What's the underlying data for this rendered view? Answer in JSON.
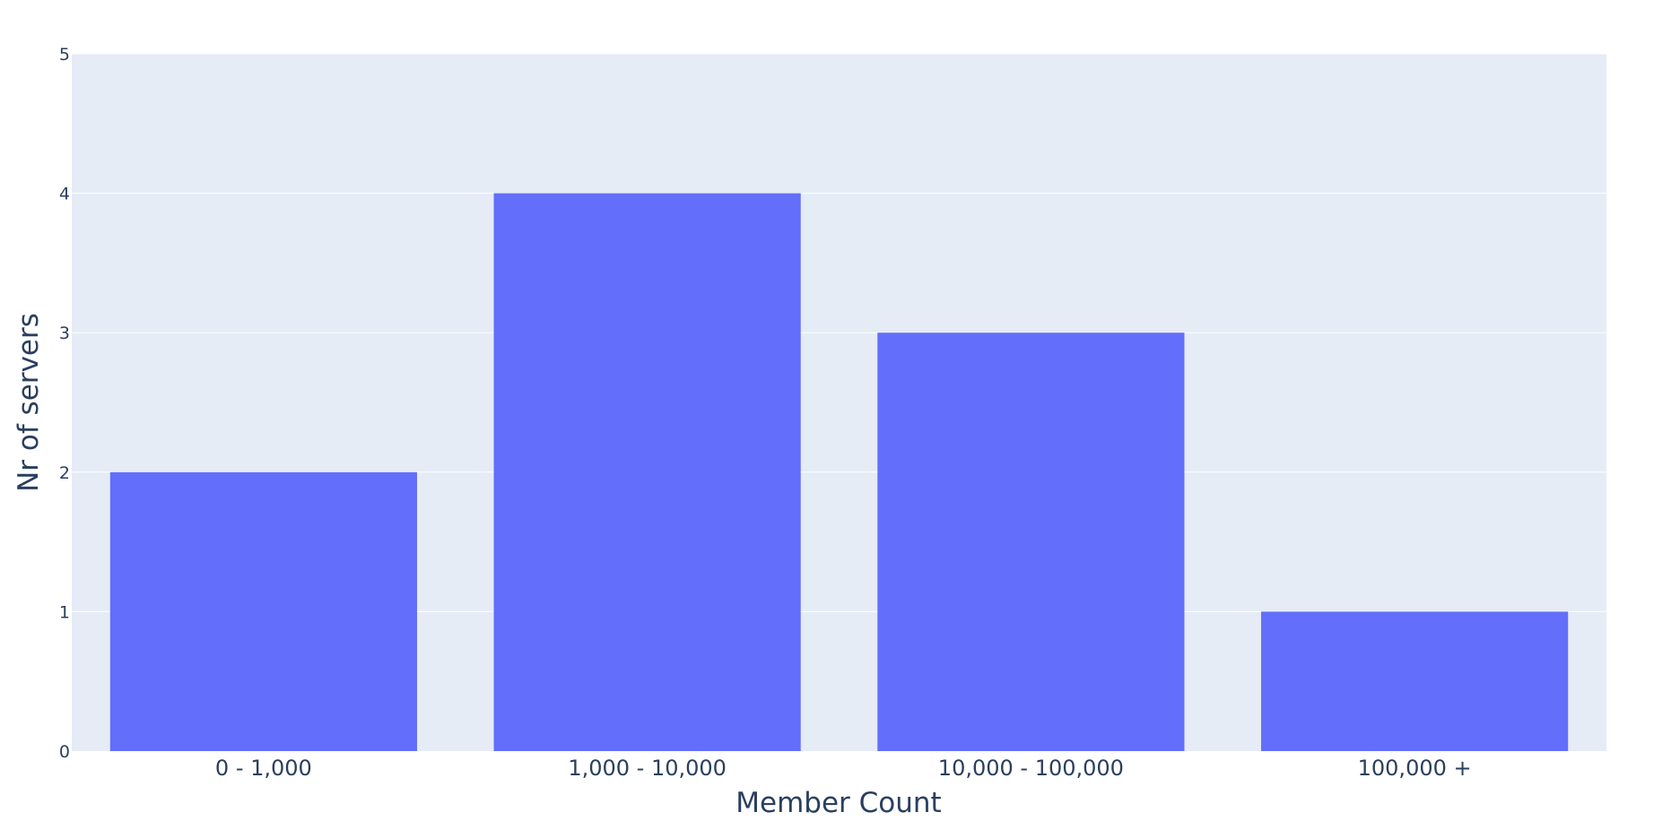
{
  "colors": {
    "plot_bg": "#e5ecf6",
    "gridline": "#ffffff",
    "bar": "#636efa",
    "text": "#2a3f5f"
  },
  "chart_data": {
    "type": "bar",
    "categories": [
      "0 - 1,000",
      "1,000 - 10,000",
      "10,000 - 100,000",
      "100,000 +"
    ],
    "values": [
      2,
      4,
      3,
      1
    ],
    "xlabel": "Member Count",
    "ylabel": "Nr of servers",
    "ylim": [
      0,
      5
    ],
    "yticks": [
      "0",
      "1",
      "2",
      "3",
      "4",
      "5"
    ],
    "grid": true
  }
}
